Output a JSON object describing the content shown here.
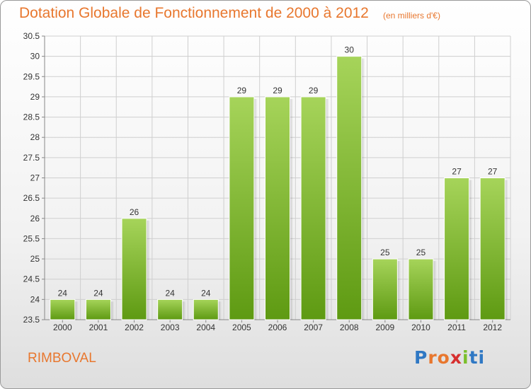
{
  "header": {
    "title": "Dotation Globale de Fonctionnement de 2000 à 2012",
    "subtitle": "(en milliers d'€)"
  },
  "footer": {
    "commune": "RIMBOVAL",
    "logo_letters": [
      "P",
      "r",
      "o",
      "x",
      "i",
      "ti"
    ]
  },
  "colors": {
    "title": "#e8772e",
    "bar_light": "#a6d45a",
    "bar_dark": "#5e9a12",
    "grid": "#cfcfcf",
    "axis_text": "#333333"
  },
  "chart_data": {
    "type": "bar",
    "title": "Dotation Globale de Fonctionnement de 2000 à 2012",
    "subtitle": "(en milliers d'€)",
    "categories": [
      "2000",
      "2001",
      "2002",
      "2003",
      "2004",
      "2005",
      "2006",
      "2007",
      "2008",
      "2009",
      "2010",
      "2011",
      "2012"
    ],
    "values": [
      24,
      24,
      26,
      24,
      24,
      29,
      29,
      29,
      30,
      25,
      25,
      27,
      27
    ],
    "data_labels": [
      "24",
      "24",
      "26",
      "24",
      "24",
      "29",
      "29",
      "29",
      "30",
      "25",
      "25",
      "27",
      "27"
    ],
    "ylim": [
      23.5,
      30.5
    ],
    "yticks": [
      "23.5",
      "24",
      "24.5",
      "25",
      "25.5",
      "26",
      "26.5",
      "27",
      "27.5",
      "28",
      "28.5",
      "29",
      "29.5",
      "30",
      "30.5"
    ],
    "xlabel": "",
    "ylabel": "",
    "grid": true,
    "legend": "none"
  }
}
